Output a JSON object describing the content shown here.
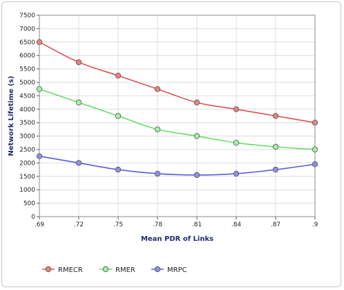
{
  "chart_data": {
    "type": "line",
    "title": "",
    "xlabel": "Mean PDR of Links",
    "ylabel": "Network Lifetime (s)",
    "x": [
      0.69,
      0.72,
      0.75,
      0.78,
      0.81,
      0.84,
      0.87,
      0.9
    ],
    "x_tick_labels": [
      ".69",
      ".72",
      ".75",
      ".78",
      ".81",
      ".84",
      ".87",
      ".9"
    ],
    "ylim": [
      0,
      7500
    ],
    "y_ticks": [
      0,
      500,
      1000,
      1500,
      2000,
      2500,
      3000,
      3500,
      4000,
      4500,
      5000,
      5500,
      6000,
      6500,
      7000,
      7500
    ],
    "grid": true,
    "legend_position": "bottom-left",
    "series": [
      {
        "name": "RMECR",
        "color": "#d9534f",
        "marker_fill": "#e8827e",
        "values": [
          6500,
          5750,
          5250,
          4750,
          4250,
          4000,
          3750,
          3500
        ]
      },
      {
        "name": "RMER",
        "color": "#66dd66",
        "marker_fill": "#a6eea6",
        "values": [
          4750,
          4250,
          3750,
          3250,
          3000,
          2750,
          2600,
          2500
        ]
      },
      {
        "name": "MRPC",
        "color": "#5a5ad6",
        "marker_fill": "#8e8ee6",
        "values": [
          2250,
          2000,
          1750,
          1600,
          1550,
          1600,
          1750,
          1950
        ]
      }
    ]
  }
}
